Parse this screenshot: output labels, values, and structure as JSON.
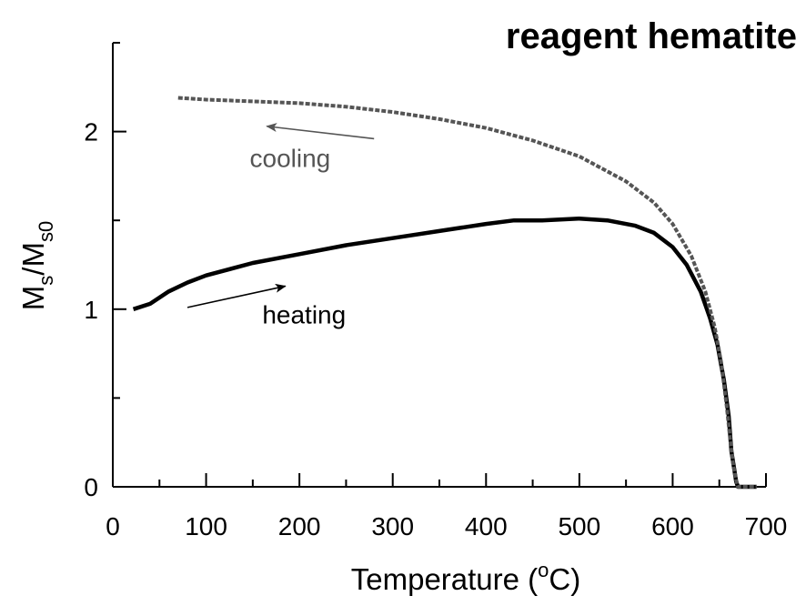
{
  "chart_data": {
    "type": "line",
    "title": "reagent hematite",
    "xlabel": {
      "main": "Temperature (",
      "sup": "o",
      "rest": "C)"
    },
    "ylabel": {
      "m1": "M",
      "s1": "s",
      "slash": "/M",
      "s2": "s0"
    },
    "xlim": [
      0,
      700
    ],
    "ylim": [
      0,
      2.5
    ],
    "xticks": [
      0,
      100,
      200,
      300,
      400,
      500,
      600,
      700
    ],
    "xtick_labels": [
      "0",
      "100",
      "200",
      "300",
      "400",
      "500",
      "600",
      "700"
    ],
    "yticks": [
      0,
      1,
      2
    ],
    "ytick_labels": [
      "0",
      "1",
      "2"
    ],
    "grid": false,
    "series": [
      {
        "name": "heating",
        "color": "#000000",
        "style": "solid",
        "x": [
          22,
          40,
          60,
          80,
          100,
          150,
          200,
          250,
          300,
          350,
          400,
          430,
          460,
          500,
          530,
          560,
          580,
          600,
          615,
          630,
          640,
          648,
          655,
          660,
          663,
          666,
          668,
          670,
          675,
          690
        ],
        "y": [
          1.0,
          1.03,
          1.1,
          1.15,
          1.19,
          1.26,
          1.31,
          1.36,
          1.4,
          1.44,
          1.48,
          1.5,
          1.5,
          1.51,
          1.5,
          1.47,
          1.43,
          1.35,
          1.25,
          1.1,
          0.95,
          0.8,
          0.6,
          0.4,
          0.2,
          0.1,
          0.03,
          0.0,
          0.0,
          0.0
        ]
      },
      {
        "name": "cooling",
        "color": "#555555",
        "style": "dashed",
        "x": [
          70,
          100,
          150,
          200,
          250,
          300,
          350,
          400,
          450,
          500,
          550,
          580,
          600,
          620,
          635,
          645,
          652,
          658,
          662,
          665,
          668,
          670,
          675,
          690
        ],
        "y": [
          2.19,
          2.18,
          2.17,
          2.16,
          2.14,
          2.11,
          2.07,
          2.02,
          1.95,
          1.86,
          1.72,
          1.6,
          1.48,
          1.3,
          1.1,
          0.9,
          0.7,
          0.45,
          0.25,
          0.12,
          0.04,
          0.0,
          0.0,
          0.0
        ]
      }
    ],
    "annotations": [
      {
        "text": "cooling",
        "x": 190,
        "y": 1.8,
        "color": "#555555",
        "arrow": {
          "from": [
            280,
            1.96
          ],
          "to": [
            165,
            2.03
          ]
        }
      },
      {
        "text": "heating",
        "x": 205,
        "y": 0.92,
        "color": "#000000",
        "arrow": {
          "from": [
            80,
            1.01
          ],
          "to": [
            185,
            1.13
          ]
        }
      }
    ]
  }
}
